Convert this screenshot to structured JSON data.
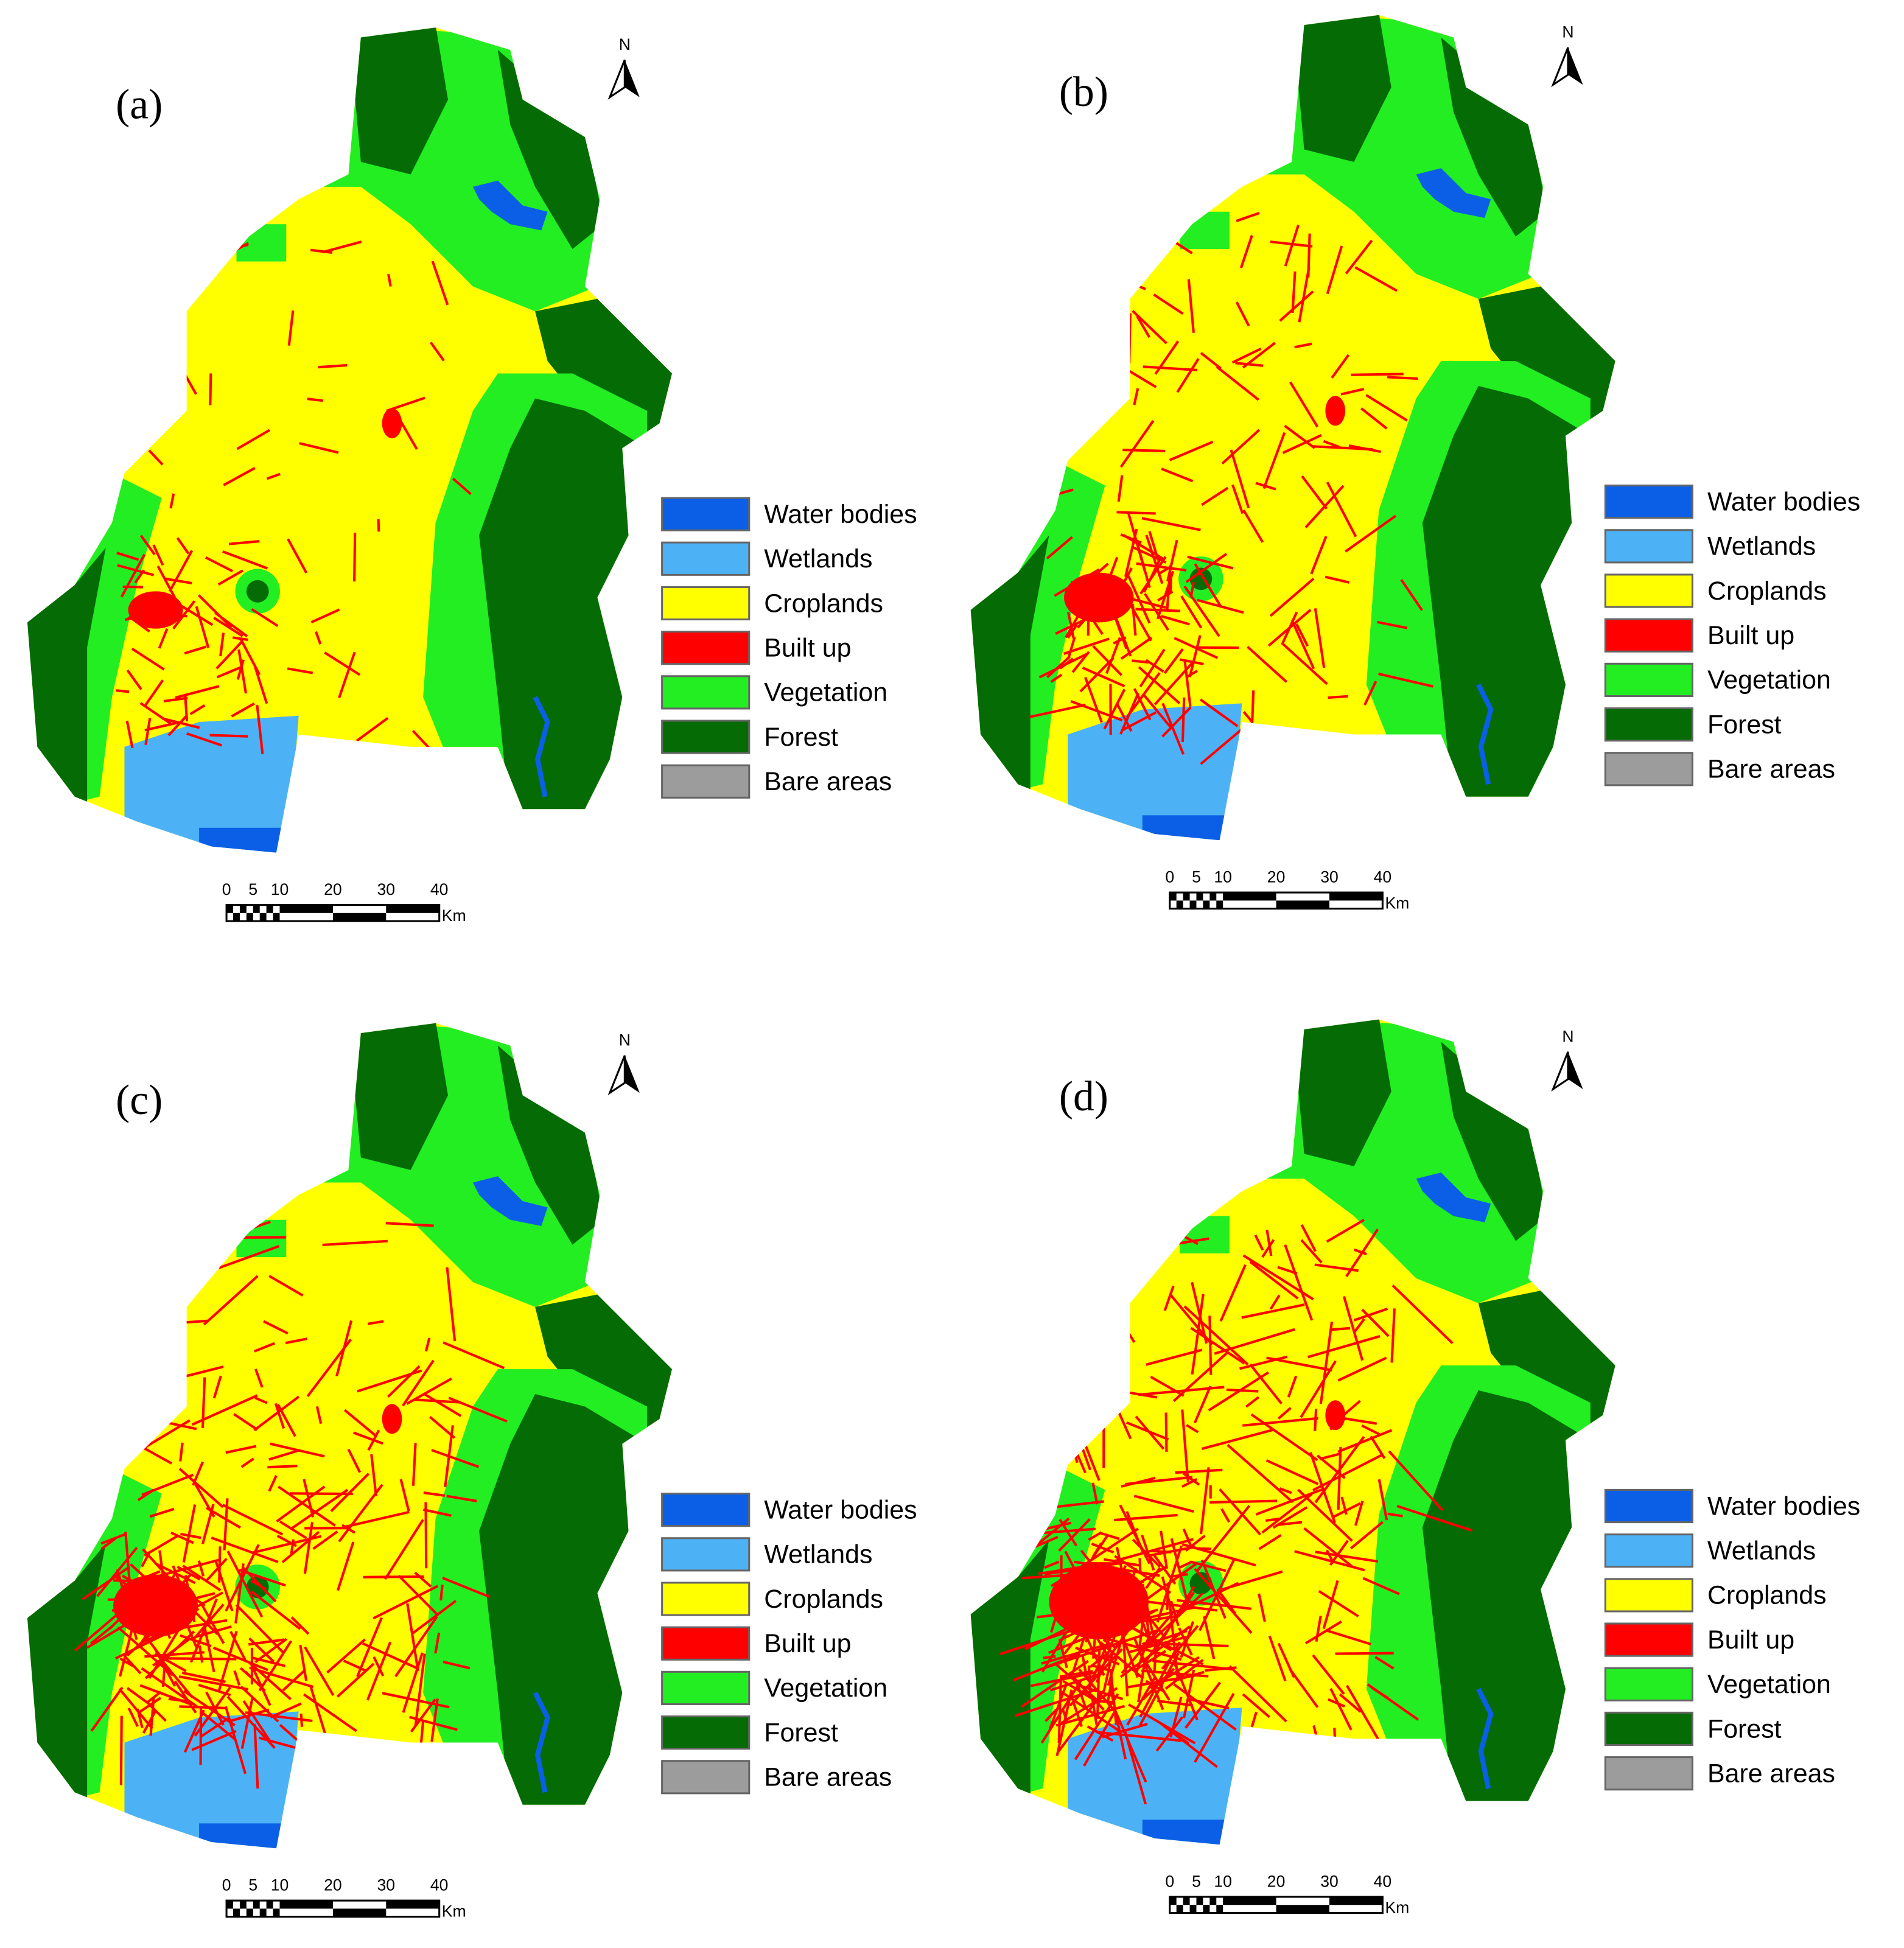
{
  "panels": [
    {
      "label": "(a)",
      "north": "N",
      "legend": [
        {
          "label": "Water bodies",
          "color": "#0a5fe6"
        },
        {
          "label": "Wetlands",
          "color": "#4db2f5"
        },
        {
          "label": "Croplands",
          "color": "#ffff00"
        },
        {
          "label": "Built up",
          "color": "#ff0000"
        },
        {
          "label": "Vegetation",
          "color": "#22ee22"
        },
        {
          "label": "Forest",
          "color": "#056b05"
        },
        {
          "label": "Bare areas",
          "color": "#9c9c9c"
        }
      ],
      "scale": {
        "ticks": [
          0,
          5,
          10,
          20,
          30,
          40
        ],
        "unit": "Km"
      }
    },
    {
      "label": "(b)",
      "north": "N",
      "legend": [
        {
          "label": "Water bodies",
          "color": "#0a5fe6"
        },
        {
          "label": "Wetlands",
          "color": "#4db2f5"
        },
        {
          "label": "Croplands",
          "color": "#ffff00"
        },
        {
          "label": "Built up",
          "color": "#ff0000"
        },
        {
          "label": "Vegetation",
          "color": "#22ee22"
        },
        {
          "label": "Forest",
          "color": "#056b05"
        },
        {
          "label": "Bare areas",
          "color": "#9c9c9c"
        }
      ],
      "scale": {
        "ticks": [
          0,
          5,
          10,
          20,
          30,
          40
        ],
        "unit": "Km"
      }
    },
    {
      "label": "(c)",
      "north": "N",
      "legend": [
        {
          "label": "Water bodies",
          "color": "#0a5fe6"
        },
        {
          "label": "Wetlands",
          "color": "#4db2f5"
        },
        {
          "label": "Croplands",
          "color": "#ffff00"
        },
        {
          "label": "Built up",
          "color": "#ff0000"
        },
        {
          "label": "Vegetation",
          "color": "#22ee22"
        },
        {
          "label": "Forest",
          "color": "#056b05"
        },
        {
          "label": "Bare areas",
          "color": "#9c9c9c"
        }
      ],
      "scale": {
        "ticks": [
          0,
          5,
          10,
          20,
          30,
          40
        ],
        "unit": "Km"
      }
    },
    {
      "label": "(d)",
      "north": "N",
      "legend": [
        {
          "label": "Water bodies",
          "color": "#0a5fe6"
        },
        {
          "label": "Wetlands",
          "color": "#4db2f5"
        },
        {
          "label": "Croplands",
          "color": "#ffff00"
        },
        {
          "label": "Built up",
          "color": "#ff0000"
        },
        {
          "label": "Vegetation",
          "color": "#22ee22"
        },
        {
          "label": "Forest",
          "color": "#056b05"
        },
        {
          "label": "Bare areas",
          "color": "#9c9c9c"
        }
      ],
      "scale": {
        "ticks": [
          0,
          5,
          10,
          20,
          30,
          40
        ],
        "unit": "Km"
      }
    }
  ]
}
